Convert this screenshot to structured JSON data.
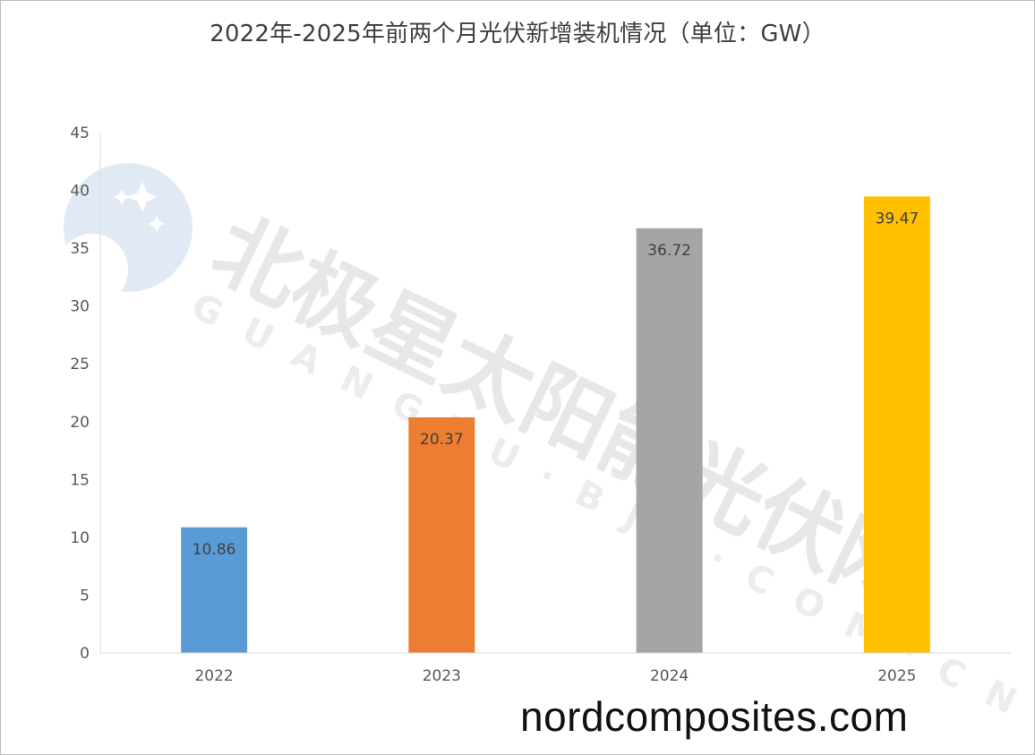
{
  "chart_data": {
    "type": "bar",
    "title": "2022年-2025年前两个月光伏新增装机情况（单位：GW）",
    "categories": [
      "2022",
      "2023",
      "2024",
      "2025"
    ],
    "values": [
      10.86,
      20.37,
      36.72,
      39.47
    ],
    "data_labels": [
      "10.86",
      "20.37",
      "36.72",
      "39.47"
    ],
    "ylim": [
      0,
      45
    ],
    "yticks": [
      "0",
      "5",
      "10",
      "15",
      "20",
      "25",
      "30",
      "35",
      "40",
      "45"
    ],
    "xlabel": "",
    "ylabel": "",
    "grid": false,
    "legend": "none",
    "colors": [
      "#5b9bd5",
      "#ed7d31",
      "#a5a5a5",
      "#ffc000"
    ]
  },
  "watermark": {
    "brand_cn": "北极星太阳能光伏网",
    "brand_en": "GUANGFU·BJX·COM·CN",
    "site": "nordcomposites.com",
    "logo_color": "#c9d9ec"
  }
}
